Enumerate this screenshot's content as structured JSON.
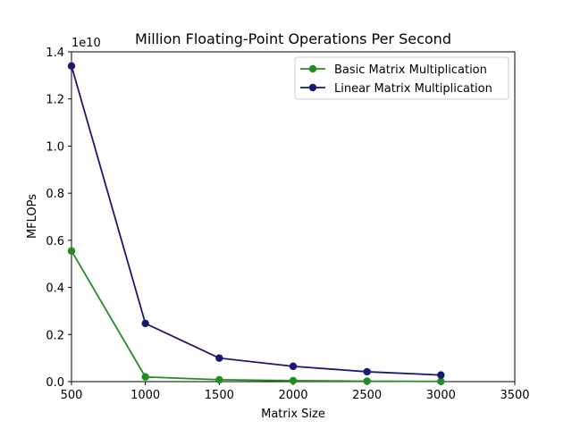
{
  "chart_data": {
    "type": "line",
    "title": "Million Floating-Point Operations Per Second",
    "xlabel": "Matrix Size",
    "ylabel": "MFLOPs",
    "y_offset_text": "1e10",
    "y_scale_factor": 10000000000,
    "xlim": [
      500,
      3500
    ],
    "ylim": [
      0,
      14000000000
    ],
    "x_ticks": [
      500,
      1000,
      1500,
      2000,
      2500,
      3000,
      3500
    ],
    "y_ticks": [
      0,
      2000000000,
      4000000000,
      6000000000,
      8000000000,
      10000000000,
      12000000000,
      14000000000
    ],
    "y_tick_labels": [
      "0.0",
      "0.2",
      "0.4",
      "0.6",
      "0.8",
      "1.0",
      "1.2",
      "1.4"
    ],
    "x_tick_labels": [
      "500",
      "1000",
      "1500",
      "2000",
      "2500",
      "3000",
      "3500"
    ],
    "grid": false,
    "legend_position": "top-right",
    "x": [
      500,
      1000,
      1500,
      2000,
      2500,
      3000
    ],
    "series": [
      {
        "name": "Basic Matrix Multiplication",
        "color": "#228b22",
        "values": [
          5550000000,
          200000000,
          80000000,
          40000000,
          20000000,
          10000000
        ]
      },
      {
        "name": "Linear Matrix Multiplication",
        "color": "#191970",
        "values": [
          13400000000,
          2470000000,
          1000000000,
          650000000,
          420000000,
          280000000
        ]
      }
    ]
  }
}
